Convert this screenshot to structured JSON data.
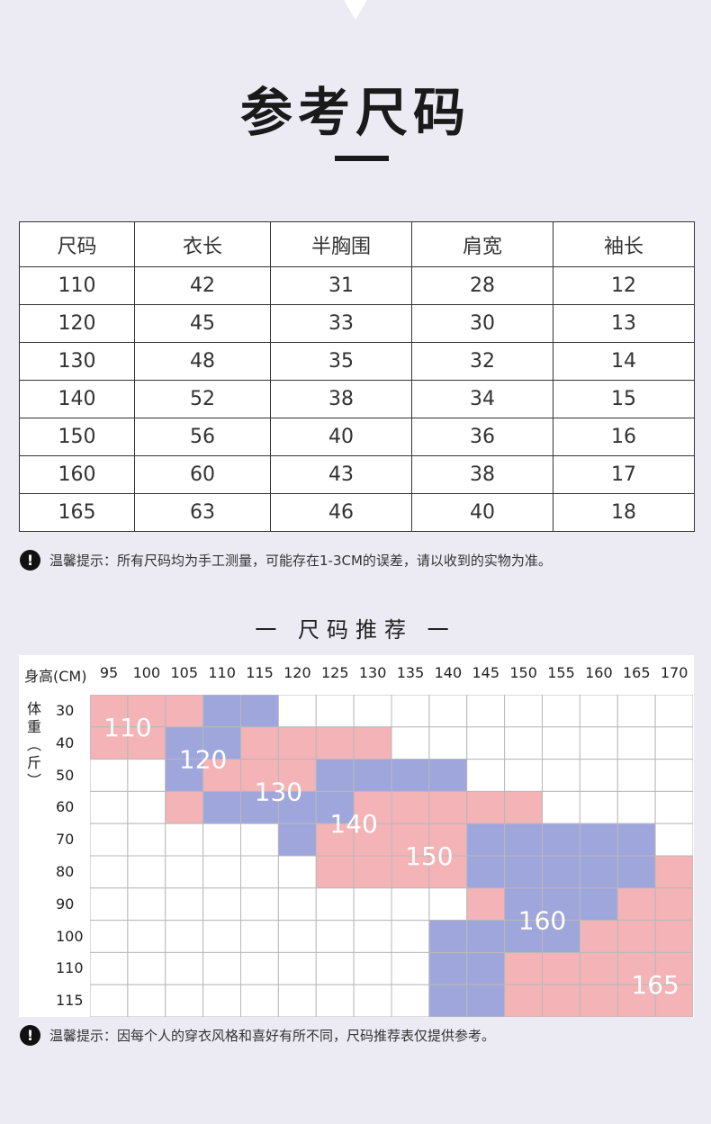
{
  "title": "参考尺码",
  "size_table": {
    "headers": [
      "尺码",
      "衣长",
      "半胸围",
      "肩宽",
      "袖长"
    ],
    "rows": [
      [
        "110",
        "42",
        "31",
        "28",
        "12"
      ],
      [
        "120",
        "45",
        "33",
        "30",
        "13"
      ],
      [
        "130",
        "48",
        "35",
        "32",
        "14"
      ],
      [
        "140",
        "52",
        "38",
        "34",
        "15"
      ],
      [
        "150",
        "56",
        "40",
        "36",
        "16"
      ],
      [
        "160",
        "60",
        "43",
        "38",
        "17"
      ],
      [
        "165",
        "63",
        "46",
        "40",
        "18"
      ]
    ]
  },
  "tip1": "温馨提示：所有尺码均为手工测量，可能存在1-3CM的误差，请以收到的实物为准。",
  "rec_title": "一 尺码推荐 一",
  "rec_chart": {
    "height_label": "身高(CM)",
    "heights": [
      "95",
      "100",
      "105",
      "110",
      "115",
      "120",
      "125",
      "130",
      "135",
      "140",
      "145",
      "150",
      "155",
      "160",
      "165",
      "170"
    ],
    "weight_label": "体重（斤）",
    "weight_label_chars": [
      "体",
      "重",
      "︵",
      "斤",
      "︶"
    ],
    "weights": [
      "30",
      "40",
      "50",
      "60",
      "70",
      "80",
      "90",
      "100",
      "110",
      "115"
    ],
    "colors": {
      "pink": "#f4b3b6",
      "blue": "#9ea6dc",
      "white": "#ffffff"
    },
    "fills": [
      "PPPBB...........",
      "PPBBPPPP........",
      "..BPPPBBBB......",
      "..PBBBBPPPPP....",
      ".....BPPPPBBBBB.",
      "......PPPPBBBBBP",
      "..........PBBBPP",
      ".........BBBBPPP",
      ".........BBPPPPP",
      ".........BBPPPPP"
    ],
    "size_labels": [
      {
        "text": "110",
        "col": 1,
        "row": 1
      },
      {
        "text": "120",
        "col": 3,
        "row": 2
      },
      {
        "text": "130",
        "col": 5,
        "row": 3
      },
      {
        "text": "140",
        "col": 7,
        "row": 4
      },
      {
        "text": "150",
        "col": 9,
        "row": 5
      },
      {
        "text": "160",
        "col": 12,
        "row": 7
      },
      {
        "text": "165",
        "col": 15,
        "row": 9
      }
    ]
  },
  "tip2": "温馨提示：因每个人的穿衣风格和喜好有所不同，尺码推荐表仅提供参考。",
  "excl_glyph": "!"
}
